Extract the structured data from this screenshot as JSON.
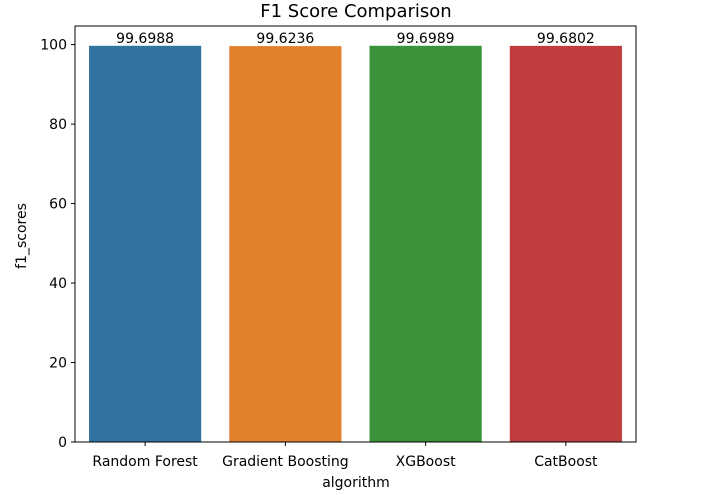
{
  "chart_data": {
    "type": "bar",
    "title": "F1 Score Comparison",
    "xlabel": "algorithm",
    "ylabel": "f1_scores",
    "categories": [
      "Random Forest",
      "Gradient Boosting",
      "XGBoost",
      "CatBoost"
    ],
    "values": [
      99.6988,
      99.6236,
      99.6989,
      99.6802
    ],
    "data_labels": [
      "99.6988",
      "99.6236",
      "99.6989",
      "99.6802"
    ],
    "colors": [
      "#3274a1",
      "#e1812c",
      "#3a923a",
      "#c03d3e"
    ],
    "ylim": [
      0,
      104.68
    ],
    "yticks": [
      0,
      20,
      40,
      60,
      80,
      100
    ],
    "grid": false,
    "legend": "none"
  }
}
